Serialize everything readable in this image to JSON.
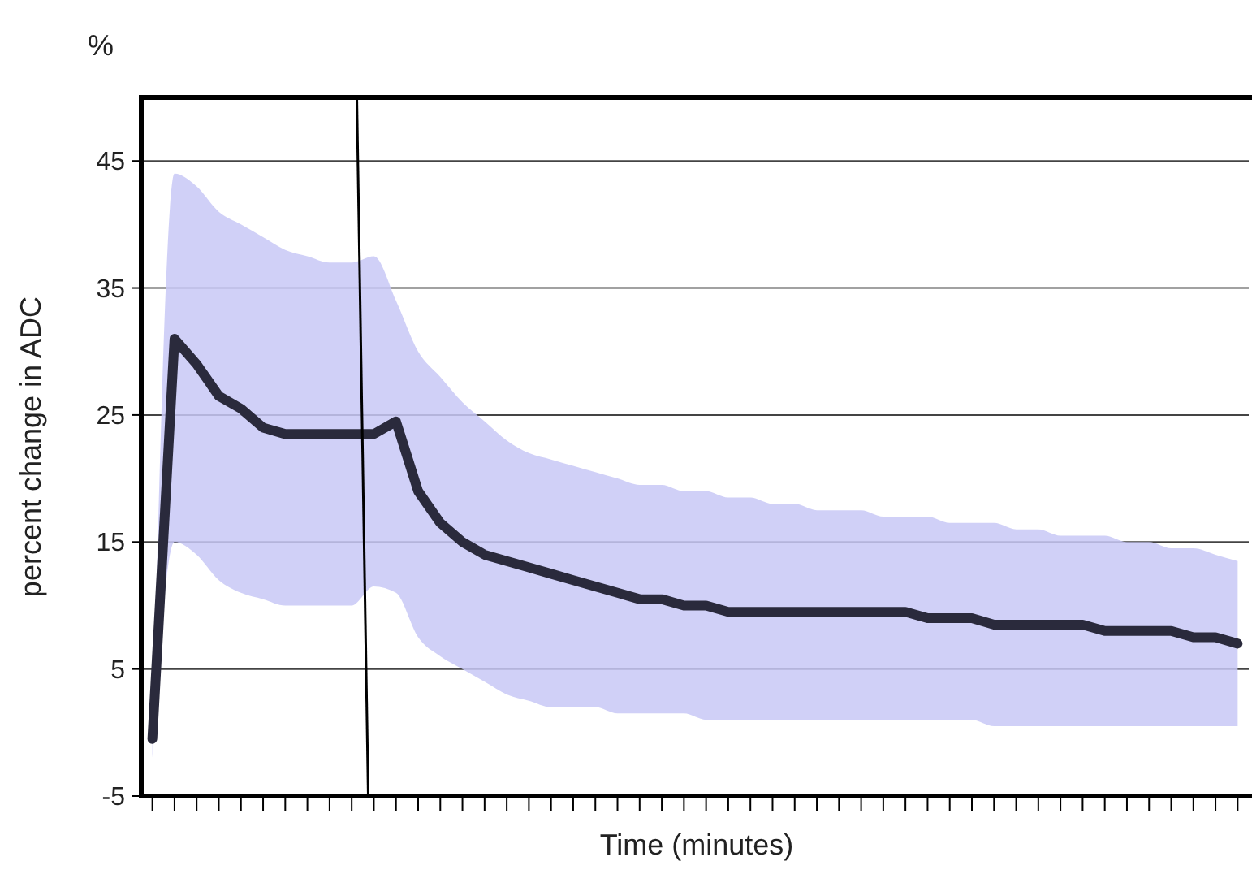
{
  "chart_data": {
    "type": "line",
    "xlabel": "Time (minutes)",
    "ylabel": "percent change in ADC",
    "annotations": [
      "%"
    ],
    "categories": [
      null,
      null,
      null,
      null,
      null,
      null,
      null,
      null,
      null,
      null,
      null,
      null,
      null,
      null,
      null,
      null,
      null,
      null,
      null,
      null,
      null,
      null,
      null,
      null,
      null,
      null,
      null,
      null,
      null,
      null,
      null,
      null,
      null,
      null,
      null,
      null,
      null,
      null,
      null,
      null,
      null,
      null,
      null,
      null,
      null,
      null,
      null,
      null,
      null,
      null
    ],
    "series": [
      {
        "color": "#2a2a3c",
        "values": [
          -0.5,
          31,
          29,
          26.5,
          25.5,
          24,
          23.5,
          23.5,
          23.5,
          23.5,
          23.5,
          24.5,
          19,
          16.5,
          15,
          14,
          13.5,
          13,
          12.5,
          12,
          11.5,
          11,
          10.5,
          10.5,
          10,
          10,
          9.5,
          9.5,
          9.5,
          9.5,
          9.5,
          9.5,
          9.5,
          9.5,
          9.5,
          9,
          9,
          9,
          8.5,
          8.5,
          8.5,
          8.5,
          8.5,
          8,
          8,
          8,
          8,
          7.5,
          7.5,
          7
        ],
        "upper": [
          -1,
          44,
          43,
          41,
          40,
          39,
          38,
          37.5,
          37,
          37,
          37.5,
          34,
          30,
          28,
          26,
          24.5,
          23,
          22,
          21.5,
          21,
          20.5,
          20,
          19.5,
          19.5,
          19,
          19,
          18.5,
          18.5,
          18,
          18,
          17.5,
          17.5,
          17.5,
          17,
          17,
          17,
          16.5,
          16.5,
          16.5,
          16,
          16,
          15.5,
          15.5,
          15.5,
          15,
          15,
          14.5,
          14.5,
          14,
          13.5
        ],
        "lower": [
          -2,
          15,
          14,
          12,
          11,
          10.5,
          10,
          10,
          10,
          10,
          11.5,
          11,
          7.5,
          6,
          5,
          4,
          3,
          2.5,
          2,
          2,
          2,
          1.5,
          1.5,
          1.5,
          1.5,
          1,
          1,
          1,
          1,
          1,
          1,
          1,
          1,
          1,
          1,
          1,
          1,
          1,
          0.5,
          0.5,
          0.5,
          0.5,
          0.5,
          0.5,
          0.5,
          0.5,
          0.5,
          0.5,
          0.5,
          0.5
        ]
      }
    ],
    "ylim": [
      -5,
      50
    ],
    "yticks": [
      -5,
      5,
      15,
      25,
      35,
      45
    ],
    "grid": "y",
    "marker": "none",
    "line_style": "solid",
    "tick_labels": "y"
  }
}
